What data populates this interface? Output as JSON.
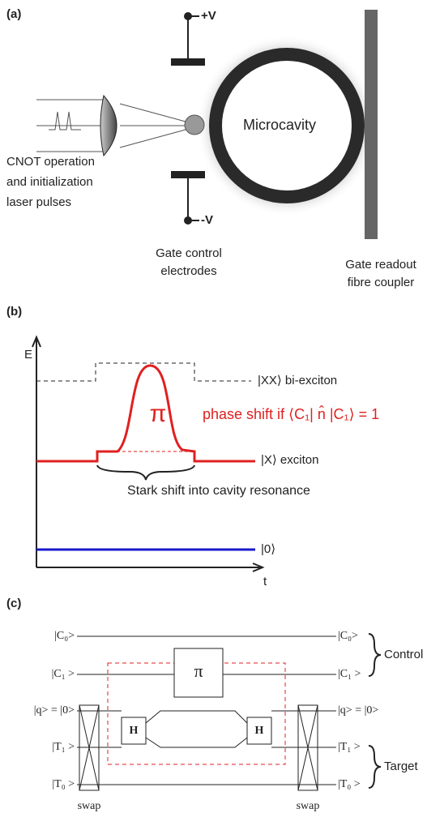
{
  "panel_a": {
    "label": "(a)",
    "plus_v": "+V",
    "minus_v": "-V",
    "cavity": "Microcavity",
    "laser_text": [
      "CNOT operation",
      "and initialization",
      "laser pulses"
    ],
    "electrode_text": [
      "Gate control",
      "electrodes"
    ],
    "fibre_text": [
      "Gate readout",
      "fibre coupler"
    ]
  },
  "panel_b": {
    "label": "(b)",
    "y_axis": "E",
    "x_axis": "t",
    "biexciton": "|XX⟩ bi-exciton",
    "pi": "π",
    "phase_shift": "phase shift if ⟨C₁| n̂ |C₁⟩ = 1",
    "exciton": "|X⟩  exciton",
    "stark": "Stark shift into cavity resonance",
    "ground": "|0⟩"
  },
  "panel_c": {
    "label": "(c)",
    "left_labels": [
      "|C₀>",
      "|C₁ >",
      "|q> = |0>",
      "|T₁ >",
      "|T₀ >"
    ],
    "right_labels": [
      "|C₀>",
      "|C₁ >",
      "|q> = |0>",
      "|T₁ >",
      "|T₀ >"
    ],
    "swap_labels": [
      "swap",
      "swap"
    ],
    "gates": [
      "H",
      "H"
    ],
    "pi": "π",
    "control": "Control",
    "target": "Target"
  }
}
